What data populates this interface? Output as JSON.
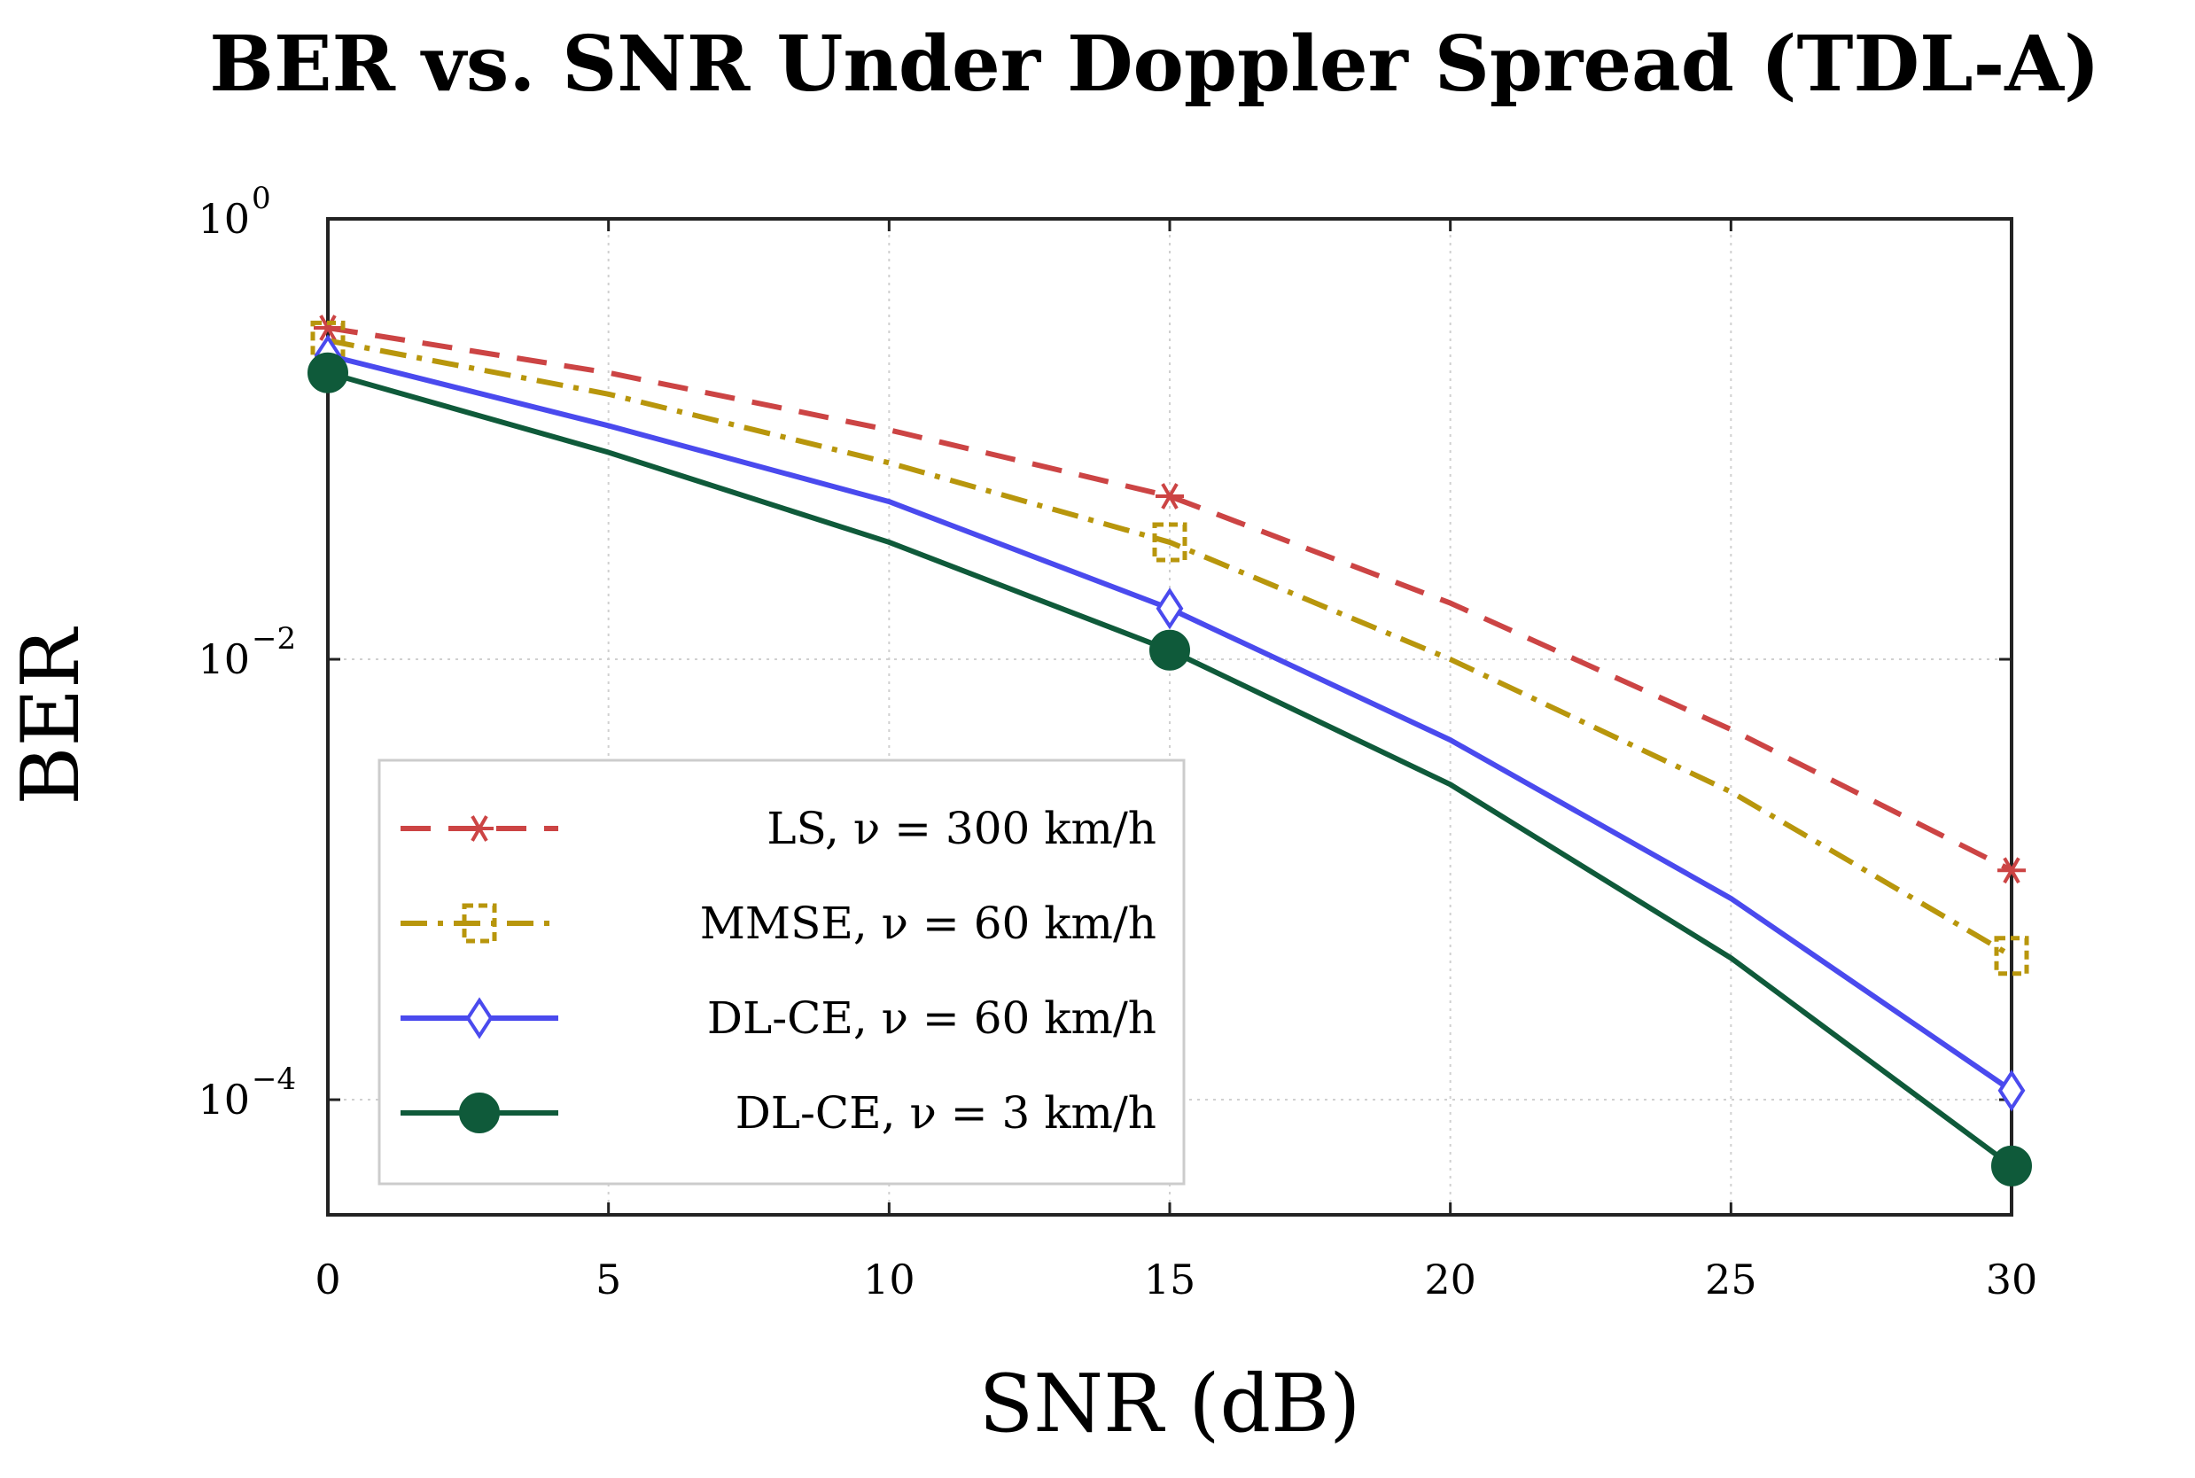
{
  "chart_data": {
    "type": "line",
    "title": "BER vs. SNR Under Doppler Spread (TDL-A)",
    "xlabel": "SNR (dB)",
    "ylabel": "BER",
    "x": [
      0,
      5,
      10,
      15,
      20,
      25,
      30
    ],
    "xlim": [
      0,
      30
    ],
    "ylim": [
      3e-05,
      1
    ],
    "yscale": "log",
    "x_ticks": [
      "0",
      "5",
      "10",
      "15",
      "20",
      "25",
      "30"
    ],
    "y_ticks": [
      {
        "value": 1,
        "base": "10",
        "exp": "0"
      },
      {
        "value": 0.01,
        "base": "10",
        "exp": "−2"
      },
      {
        "value": 0.0001,
        "base": "10",
        "exp": "−4"
      }
    ],
    "grid": true,
    "legend_position": "bottom-left",
    "series": [
      {
        "name": "LS, ν = 300 km/h",
        "color": "#cc4444",
        "line": "dashed",
        "marker": "star",
        "values": [
          0.32,
          0.2,
          0.11,
          0.055,
          0.018,
          0.0048,
          0.0011
        ]
      },
      {
        "name": "MMSE, ν = 60 km/h",
        "color": "#b8960c",
        "line": "dash-dot",
        "marker": "square",
        "values": [
          0.28,
          0.16,
          0.078,
          0.034,
          0.01,
          0.0025,
          0.00045
        ]
      },
      {
        "name": "DL-CE, ν = 60 km/h",
        "color": "#4a4aee",
        "line": "solid",
        "marker": "diamond",
        "values": [
          0.24,
          0.115,
          0.052,
          0.017,
          0.0043,
          0.00082,
          0.00011
        ]
      },
      {
        "name": "DL-CE, ν = 3 km/h",
        "color": "#0f5a3a",
        "line": "solid",
        "marker": "circle",
        "values": [
          0.2,
          0.087,
          0.034,
          0.011,
          0.0027,
          0.00044,
          5e-05
        ]
      }
    ]
  }
}
